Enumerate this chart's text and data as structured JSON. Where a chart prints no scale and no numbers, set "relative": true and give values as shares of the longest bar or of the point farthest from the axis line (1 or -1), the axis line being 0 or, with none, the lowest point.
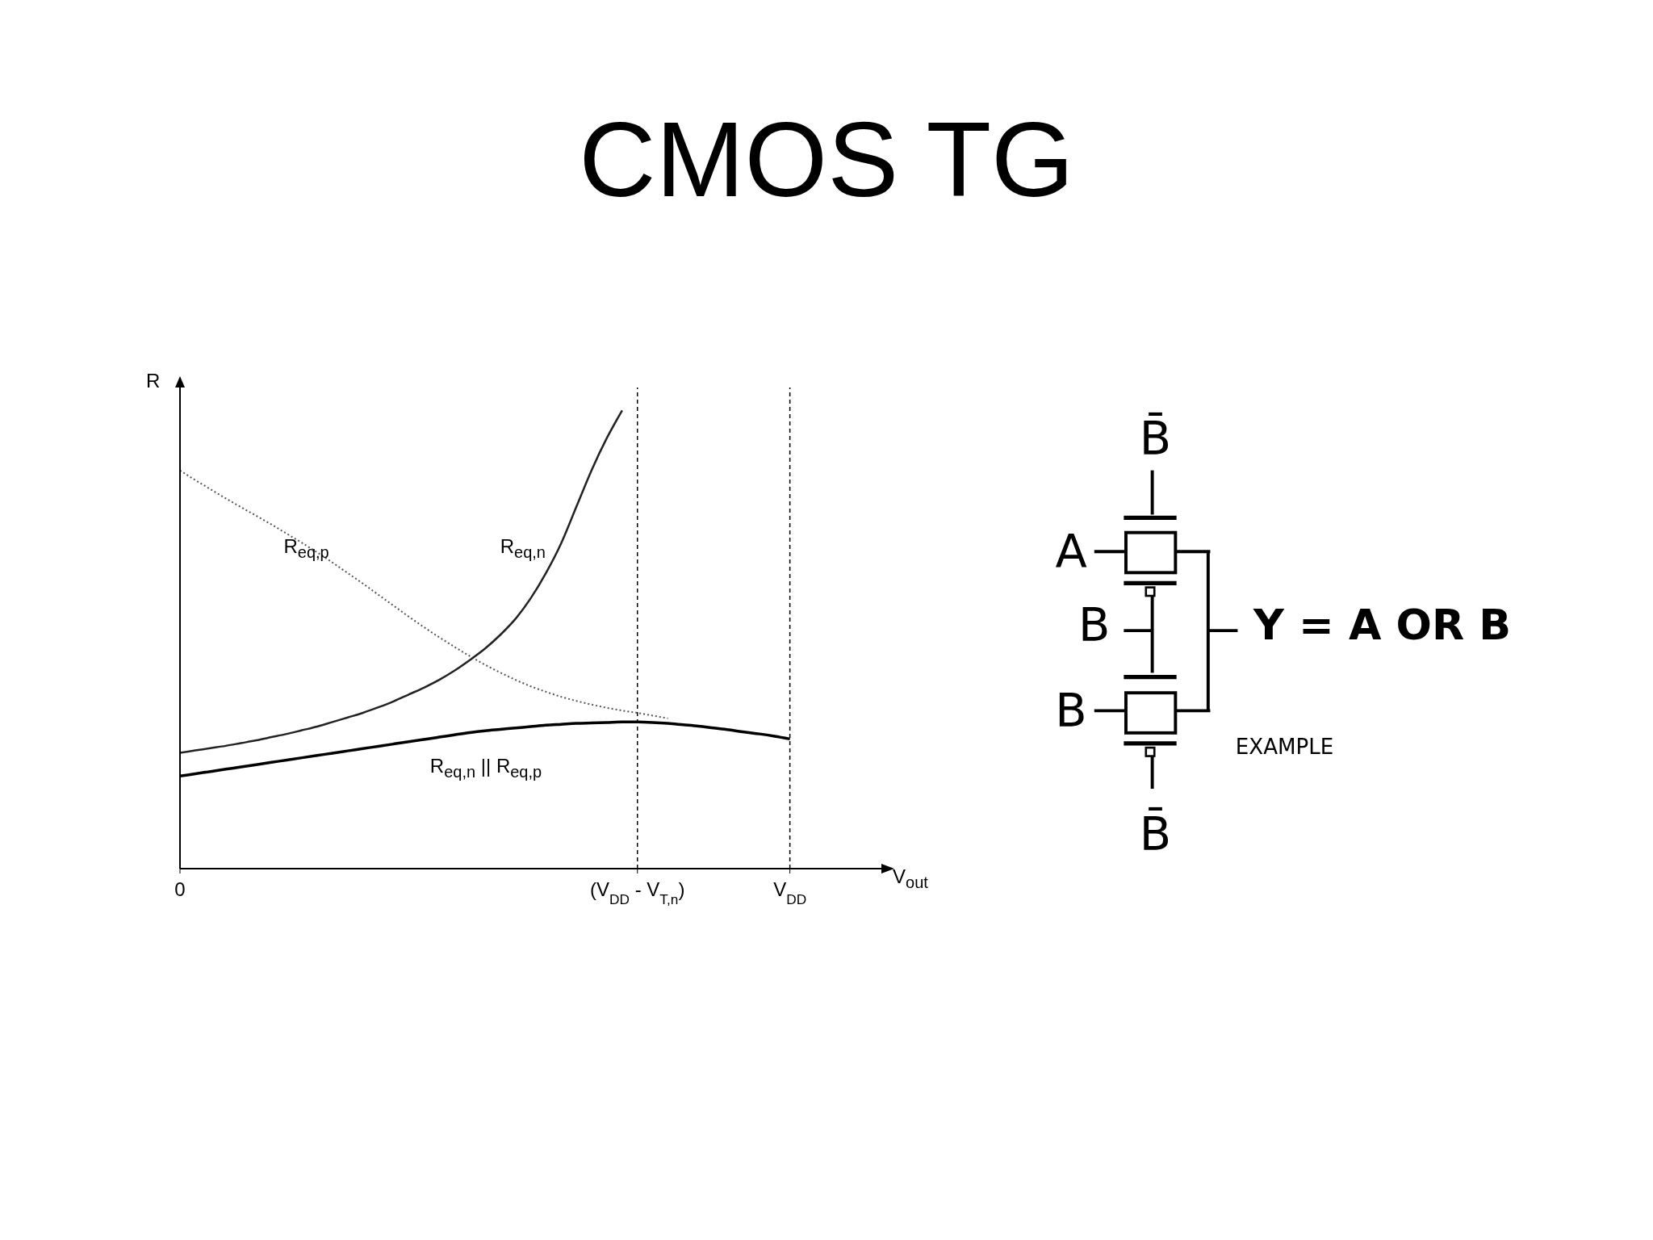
{
  "chart_data": {
    "type": "line",
    "title": "CMOS TG",
    "xlabel": "V$_{out}$",
    "ylabel": "R",
    "relative": true,
    "categories": [
      "0",
      null,
      null,
      null,
      null,
      null,
      null,
      null,
      null,
      null,
      null,
      null,
      null,
      null,
      null,
      null,
      null,
      null,
      null,
      null,
      null,
      null,
      null,
      null,
      null,
      null,
      null,
      null,
      null,
      null,
      "(V$_{DD}$ - V$_{T,n}$)",
      null,
      null,
      null,
      null,
      null,
      null,
      null,
      null,
      null,
      "V$_{DD}$",
      null,
      null,
      null,
      null,
      null,
      null
    ],
    "series": [
      {
        "name": "R$_{eq,p}$",
        "color": "#555555",
        "line_style": "dotted",
        "values": [
          0.869,
          0.848,
          0.828,
          0.808,
          0.789,
          0.77,
          0.751,
          0.731,
          0.711,
          0.69,
          0.668,
          0.645,
          0.622,
          0.598,
          0.574,
          0.55,
          0.527,
          0.505,
          0.484,
          0.464,
          0.445,
          0.428,
          0.412,
          0.398,
          0.386,
          0.375,
          0.366,
          0.358,
          0.351,
          0.345,
          0.34,
          0.334,
          0.328,
          null,
          null,
          null,
          null,
          null,
          null,
          null,
          null,
          null,
          null,
          null,
          null,
          null,
          null
        ]
      },
      {
        "name": "R$_{eq,n}$",
        "color": "#222222",
        "line_style": "solid",
        "values": [
          0.253,
          0.258,
          0.263,
          0.268,
          0.274,
          0.28,
          0.287,
          0.294,
          0.302,
          0.31,
          0.32,
          0.33,
          0.34,
          0.352,
          0.365,
          0.38,
          0.395,
          0.412,
          0.432,
          0.455,
          0.48,
          0.51,
          0.545,
          0.59,
          0.645,
          0.71,
          0.79,
          0.87,
          0.94,
          1,
          null,
          null,
          null,
          null,
          null,
          null,
          null,
          null,
          null,
          null,
          null,
          null,
          null,
          null,
          null,
          null,
          null
        ]
      },
      {
        "name": "R$_{eq,n}$ || R$_{eq,p}$",
        "color": "#000000",
        "line_style": "solid",
        "values": [
          0.202,
          0.207,
          0.212,
          0.217,
          0.222,
          0.227,
          0.232,
          0.237,
          0.242,
          0.247,
          0.252,
          0.257,
          0.262,
          0.267,
          0.272,
          0.277,
          0.282,
          0.287,
          0.292,
          0.297,
          0.301,
          0.304,
          0.307,
          0.31,
          0.313,
          0.315,
          0.317,
          0.318,
          0.319,
          0.32,
          0.32,
          0.319,
          0.317,
          0.314,
          0.311,
          0.307,
          0.303,
          0.298,
          0.294,
          0.289,
          0.283,
          null,
          null,
          null,
          null,
          null,
          null
        ]
      }
    ],
    "ref_lines": [
      {
        "axis": "x",
        "value": "(V$_{DD}$ - V$_{T,n}$)",
        "line_style": "dashed",
        "color": "#000000"
      },
      {
        "axis": "x",
        "value": "V$_{DD}$",
        "line_style": "dashed",
        "color": "#000000"
      }
    ],
    "annotations": [
      "B̄",
      "A",
      "B",
      "Y = A OR B",
      "B",
      "EXAMPLE",
      "B̄"
    ],
    "grid": false,
    "legend": false
  }
}
